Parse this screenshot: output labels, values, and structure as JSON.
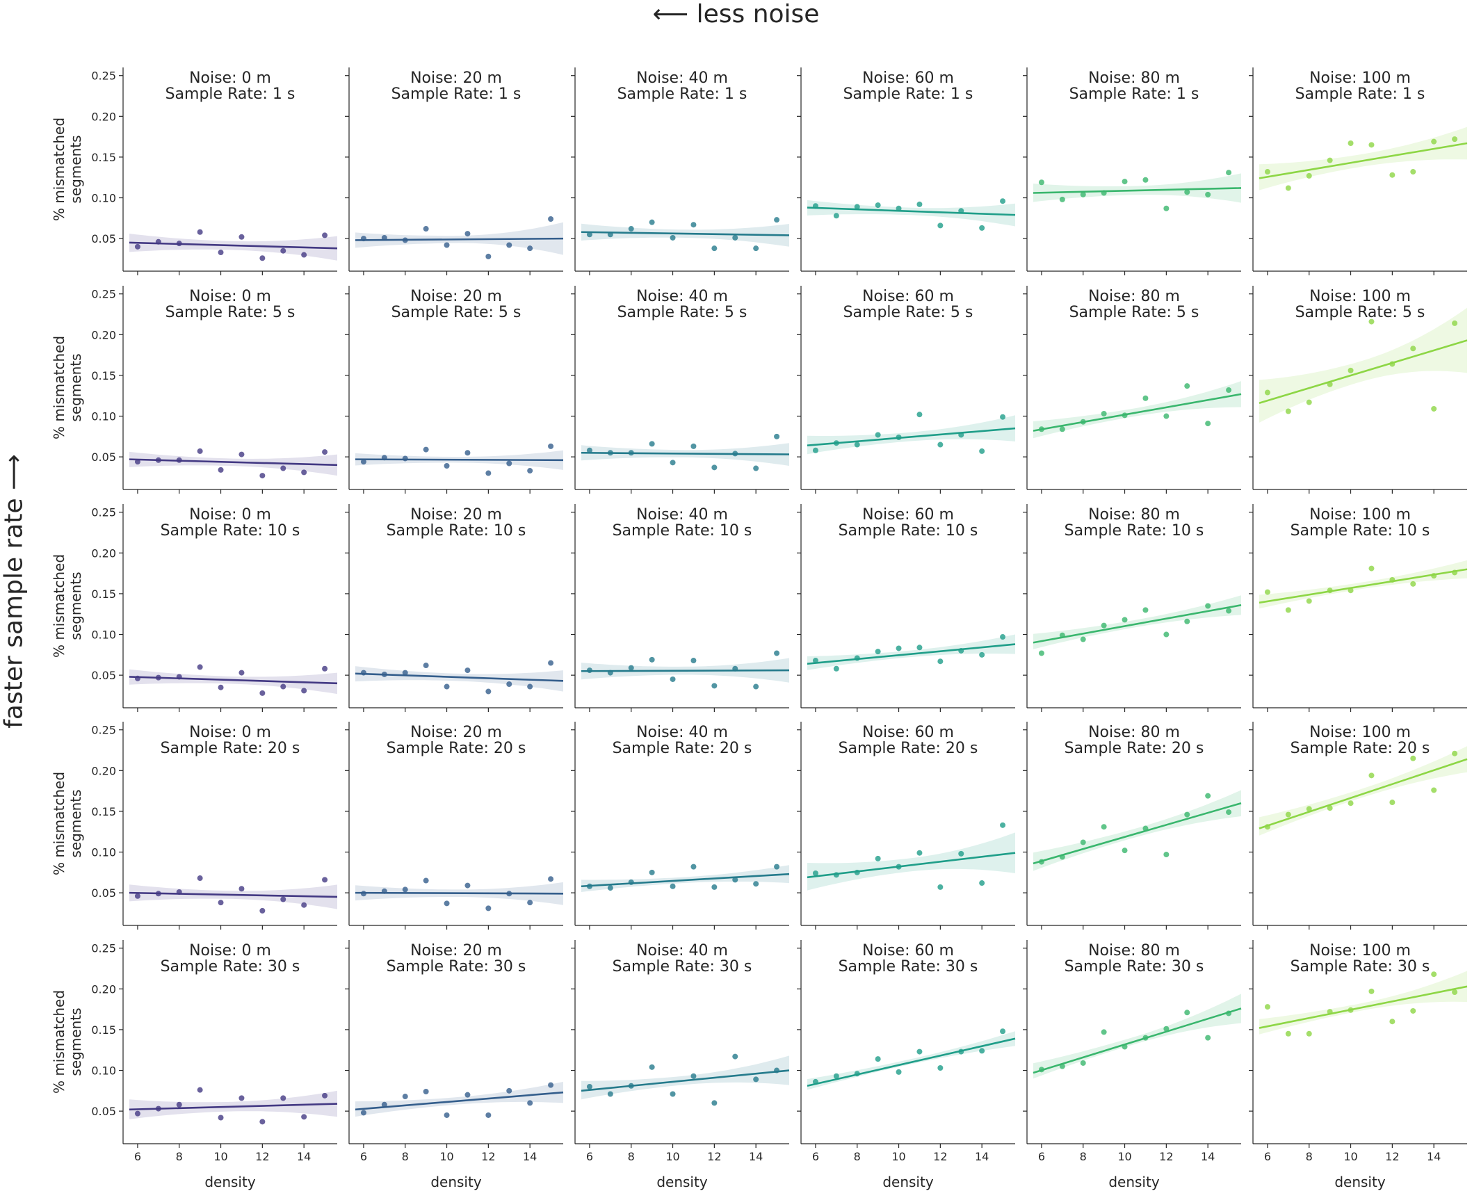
{
  "suptitle_top": "⟵ less noise",
  "suptitle_left": "faster sample rate ⟶",
  "chart_data": {
    "type": "scatter",
    "layout": "facet grid 5 rows x 6 columns with regression line and confidence band",
    "xlabel": "density",
    "ylabel": "% mismatched\nsegments",
    "xlim": [
      5.3,
      15.6
    ],
    "ylim": [
      0.01,
      0.26
    ],
    "xticks": [
      "6",
      "8",
      "10",
      "12",
      "14"
    ],
    "yticks": [
      "0.05",
      "0.10",
      "0.15",
      "0.20",
      "0.25"
    ],
    "grid": false,
    "legend": "none",
    "x": [
      6,
      7,
      8,
      9,
      10,
      11,
      12,
      13,
      14,
      15
    ],
    "col_noise": [
      "0 m",
      "20 m",
      "40 m",
      "60 m",
      "80 m",
      "100 m"
    ],
    "row_sample_rate": [
      "1 s",
      "5 s",
      "10 s",
      "20 s",
      "30 s"
    ],
    "title_format": {
      "noise_label": "Noise:",
      "rate_label": "Sample Rate:"
    },
    "colors": [
      "#433983",
      "#345e8c",
      "#257b8c",
      "#1f9e89",
      "#39b66d",
      "#8dd645"
    ],
    "panels": [
      [
        {
          "y": [
            0.04,
            0.046,
            0.044,
            0.058,
            0.033,
            0.052,
            0.026,
            0.035,
            0.03,
            0.054
          ],
          "fit": [
            0.045,
            0.038
          ],
          "ci": [
            0.012,
            0.015
          ]
        },
        {
          "y": [
            0.05,
            0.051,
            0.048,
            0.062,
            0.042,
            0.056,
            0.028,
            0.042,
            0.038,
            0.074
          ],
          "fit": [
            0.048,
            0.05
          ],
          "ci": [
            0.01,
            0.02
          ]
        },
        {
          "y": [
            0.055,
            0.055,
            0.062,
            0.07,
            0.051,
            0.067,
            0.038,
            0.051,
            0.038,
            0.073
          ],
          "fit": [
            0.058,
            0.054
          ],
          "ci": [
            0.011,
            0.014
          ]
        },
        {
          "y": [
            0.09,
            0.078,
            0.089,
            0.091,
            0.087,
            0.092,
            0.066,
            0.084,
            0.063,
            0.096
          ],
          "fit": [
            0.088,
            0.079
          ],
          "ci": [
            0.01,
            0.014
          ]
        },
        {
          "y": [
            0.119,
            0.098,
            0.104,
            0.106,
            0.12,
            0.122,
            0.087,
            0.107,
            0.104,
            0.131
          ],
          "fit": [
            0.106,
            0.112
          ],
          "ci": [
            0.012,
            0.018
          ]
        },
        {
          "y": [
            0.132,
            0.112,
            0.127,
            0.146,
            0.167,
            0.165,
            0.128,
            0.132,
            0.169,
            0.172
          ],
          "fit": [
            0.124,
            0.167
          ],
          "ci": [
            0.017,
            0.02
          ]
        }
      ],
      [
        {
          "y": [
            0.044,
            0.046,
            0.046,
            0.057,
            0.034,
            0.053,
            0.027,
            0.036,
            0.031,
            0.056
          ],
          "fit": [
            0.047,
            0.04
          ],
          "ci": [
            0.01,
            0.013
          ]
        },
        {
          "y": [
            0.044,
            0.049,
            0.048,
            0.059,
            0.039,
            0.055,
            0.03,
            0.042,
            0.033,
            0.063
          ],
          "fit": [
            0.047,
            0.046
          ],
          "ci": [
            0.008,
            0.012
          ]
        },
        {
          "y": [
            0.058,
            0.055,
            0.055,
            0.066,
            0.043,
            0.063,
            0.037,
            0.054,
            0.036,
            0.075
          ],
          "fit": [
            0.055,
            0.053
          ],
          "ci": [
            0.01,
            0.014
          ]
        },
        {
          "y": [
            0.058,
            0.067,
            0.065,
            0.077,
            0.074,
            0.102,
            0.065,
            0.077,
            0.057,
            0.099
          ],
          "fit": [
            0.064,
            0.085
          ],
          "ci": [
            0.012,
            0.016
          ]
        },
        {
          "y": [
            0.084,
            0.084,
            0.093,
            0.103,
            0.101,
            0.122,
            0.1,
            0.137,
            0.091,
            0.132
          ],
          "fit": [
            0.082,
            0.127
          ],
          "ci": [
            0.011,
            0.016
          ]
        },
        {
          "y": [
            0.129,
            0.106,
            0.117,
            0.139,
            0.156,
            0.216,
            0.164,
            0.183,
            0.109,
            0.214
          ],
          "fit": [
            0.116,
            0.193
          ],
          "ci": [
            0.028,
            0.04
          ]
        }
      ],
      [
        {
          "y": [
            0.046,
            0.047,
            0.048,
            0.06,
            0.035,
            0.053,
            0.028,
            0.036,
            0.031,
            0.058
          ],
          "fit": [
            0.048,
            0.04
          ],
          "ci": [
            0.01,
            0.013
          ]
        },
        {
          "y": [
            0.053,
            0.051,
            0.053,
            0.062,
            0.036,
            0.056,
            0.03,
            0.039,
            0.036,
            0.065
          ],
          "fit": [
            0.052,
            0.043
          ],
          "ci": [
            0.01,
            0.013
          ]
        },
        {
          "y": [
            0.056,
            0.053,
            0.059,
            0.069,
            0.045,
            0.068,
            0.037,
            0.058,
            0.036,
            0.077
          ],
          "fit": [
            0.055,
            0.056
          ],
          "ci": [
            0.011,
            0.015
          ]
        },
        {
          "y": [
            0.068,
            0.058,
            0.071,
            0.079,
            0.083,
            0.084,
            0.067,
            0.08,
            0.075,
            0.097
          ],
          "fit": [
            0.064,
            0.088
          ],
          "ci": [
            0.009,
            0.012
          ]
        },
        {
          "y": [
            0.077,
            0.099,
            0.094,
            0.111,
            0.118,
            0.13,
            0.1,
            0.116,
            0.135,
            0.129
          ],
          "fit": [
            0.09,
            0.136
          ],
          "ci": [
            0.01,
            0.012
          ]
        },
        {
          "y": [
            0.152,
            0.13,
            0.141,
            0.154,
            0.154,
            0.181,
            0.167,
            0.162,
            0.172,
            0.176
          ],
          "fit": [
            0.139,
            0.18
          ],
          "ci": [
            0.009,
            0.011
          ]
        }
      ],
      [
        {
          "y": [
            0.046,
            0.049,
            0.051,
            0.068,
            0.038,
            0.055,
            0.028,
            0.042,
            0.035,
            0.066
          ],
          "fit": [
            0.05,
            0.045
          ],
          "ci": [
            0.011,
            0.015
          ]
        },
        {
          "y": [
            0.049,
            0.052,
            0.054,
            0.065,
            0.037,
            0.059,
            0.031,
            0.049,
            0.038,
            0.067
          ],
          "fit": [
            0.05,
            0.049
          ],
          "ci": [
            0.01,
            0.014
          ]
        },
        {
          "y": [
            0.058,
            0.056,
            0.063,
            0.075,
            0.058,
            0.082,
            0.057,
            0.066,
            0.061,
            0.082
          ],
          "fit": [
            0.058,
            0.073
          ],
          "ci": [
            0.008,
            0.011
          ]
        },
        {
          "y": [
            0.074,
            0.072,
            0.075,
            0.092,
            0.082,
            0.099,
            0.057,
            0.098,
            0.062,
            0.133
          ],
          "fit": [
            0.069,
            0.099
          ],
          "ci": [
            0.018,
            0.025
          ]
        },
        {
          "y": [
            0.088,
            0.094,
            0.112,
            0.131,
            0.102,
            0.129,
            0.097,
            0.146,
            0.169,
            0.149
          ],
          "fit": [
            0.086,
            0.16
          ],
          "ci": [
            0.012,
            0.016
          ]
        },
        {
          "y": [
            0.131,
            0.146,
            0.153,
            0.154,
            0.16,
            0.194,
            0.161,
            0.215,
            0.176,
            0.221
          ],
          "fit": [
            0.129,
            0.214
          ],
          "ci": [
            0.012,
            0.016
          ]
        }
      ],
      [
        {
          "y": [
            0.047,
            0.053,
            0.058,
            0.076,
            0.042,
            0.066,
            0.037,
            0.066,
            0.043,
            0.069
          ],
          "fit": [
            0.052,
            0.059
          ],
          "ci": [
            0.013,
            0.016
          ]
        },
        {
          "y": [
            0.048,
            0.058,
            0.068,
            0.074,
            0.045,
            0.07,
            0.045,
            0.075,
            0.06,
            0.082
          ],
          "fit": [
            0.052,
            0.073
          ],
          "ci": [
            0.01,
            0.013
          ]
        },
        {
          "y": [
            0.08,
            0.071,
            0.081,
            0.104,
            0.071,
            0.093,
            0.06,
            0.117,
            0.089,
            0.1
          ],
          "fit": [
            0.075,
            0.1
          ],
          "ci": [
            0.012,
            0.018
          ]
        },
        {
          "y": [
            0.086,
            0.093,
            0.096,
            0.114,
            0.098,
            0.123,
            0.103,
            0.123,
            0.124,
            0.148
          ],
          "fit": [
            0.081,
            0.139
          ],
          "ci": [
            0.007,
            0.009
          ]
        },
        {
          "y": [
            0.101,
            0.105,
            0.109,
            0.147,
            0.129,
            0.14,
            0.151,
            0.171,
            0.14,
            0.17
          ],
          "fit": [
            0.097,
            0.176
          ],
          "ci": [
            0.01,
            0.018
          ]
        },
        {
          "y": [
            0.178,
            0.145,
            0.145,
            0.172,
            0.174,
            0.197,
            0.16,
            0.173,
            0.218,
            0.196
          ],
          "fit": [
            0.152,
            0.203
          ],
          "ci": [
            0.01,
            0.019
          ]
        }
      ]
    ]
  }
}
